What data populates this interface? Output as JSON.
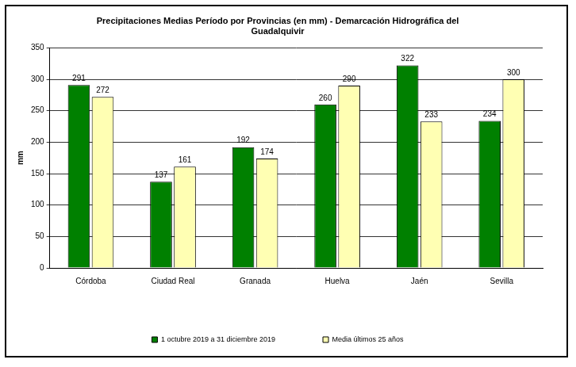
{
  "chart_data": {
    "type": "bar",
    "title": [
      "Precipitaciones Medias Período por Provincias (en mm) - Demarcación Hidrográfica del",
      "Guadalquivir"
    ],
    "y_label": "mm",
    "categories": [
      "Córdoba",
      "Ciudad Real",
      "Granada",
      "Huelva",
      "Jaén",
      "Sevilla"
    ],
    "series": [
      {
        "name": "1 octubre 2019 a 31 diciembre 2019",
        "color": "#008000",
        "values": [
          291,
          137,
          192,
          260,
          322,
          234
        ]
      },
      {
        "name": "Media últimos 25 años",
        "color": "#ffffb3",
        "values": [
          272,
          161,
          174,
          290,
          233,
          300
        ]
      }
    ],
    "ylim": [
      0,
      350
    ],
    "yticks": [
      0,
      50,
      100,
      150,
      200,
      250,
      300,
      350
    ],
    "grid": true,
    "legend": "bottom",
    "data_labels": true
  }
}
